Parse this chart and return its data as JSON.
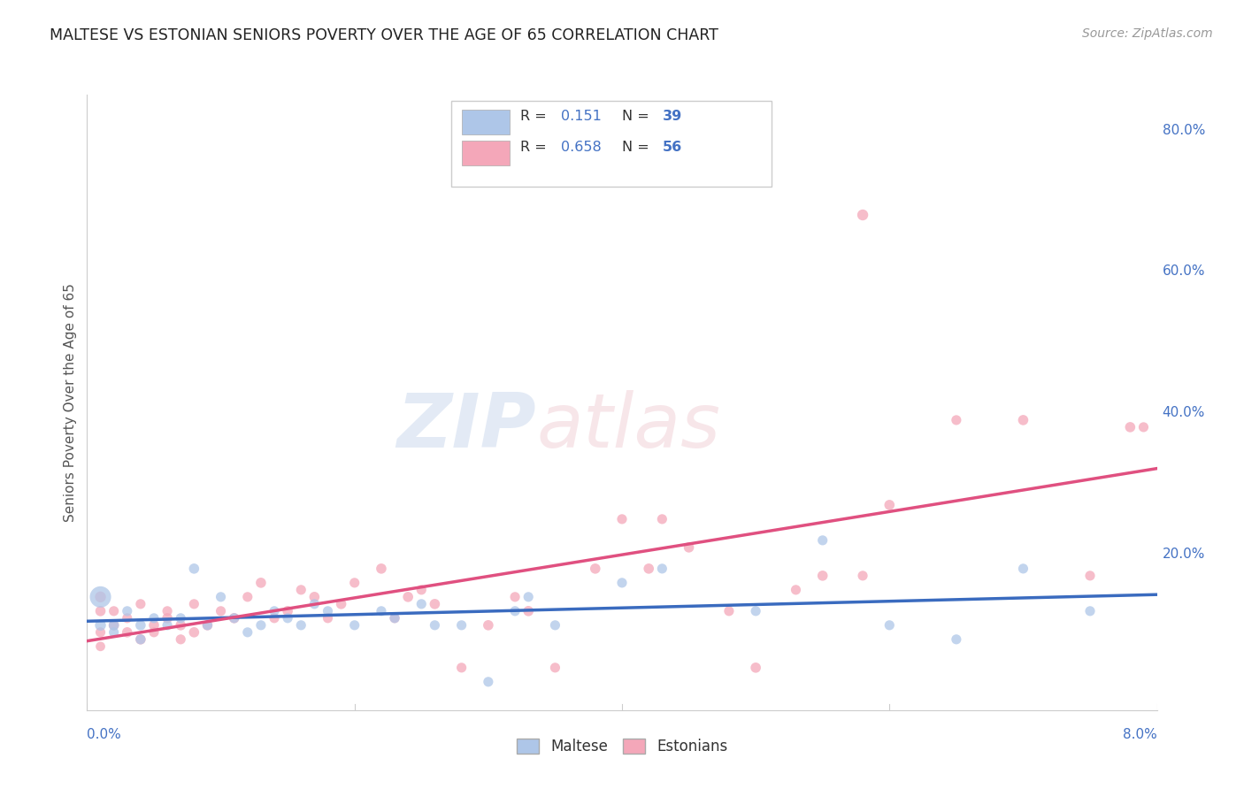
{
  "title": "MALTESE VS ESTONIAN SENIORS POVERTY OVER THE AGE OF 65 CORRELATION CHART",
  "source": "Source: ZipAtlas.com",
  "ylabel": "Seniors Poverty Over the Age of 65",
  "xmin": 0.0,
  "xmax": 0.08,
  "ymin": -0.02,
  "ymax": 0.85,
  "yticks": [
    0.0,
    0.2,
    0.4,
    0.6,
    0.8
  ],
  "ytick_labels": [
    "",
    "20.0%",
    "40.0%",
    "60.0%",
    "80.0%"
  ],
  "background_color": "#ffffff",
  "grid_color": "#cccccc",
  "maltese_color": "#aec6e8",
  "estonian_color": "#f4a7b9",
  "maltese_line_color": "#3a6bbf",
  "estonian_line_color": "#e05080",
  "legend_R_maltese": "R =  0.151",
  "legend_N_maltese": "N = 39",
  "legend_R_estonian": "R =  0.658",
  "legend_N_estonian": "N = 56",
  "maltese_x": [
    0.001,
    0.001,
    0.002,
    0.003,
    0.004,
    0.005,
    0.006,
    0.007,
    0.008,
    0.009,
    0.01,
    0.011,
    0.012,
    0.013,
    0.014,
    0.015,
    0.016,
    0.017,
    0.018,
    0.02,
    0.022,
    0.023,
    0.025,
    0.026,
    0.028,
    0.03,
    0.032,
    0.033,
    0.035,
    0.04,
    0.043,
    0.05,
    0.055,
    0.06,
    0.065,
    0.07,
    0.075,
    0.002,
    0.004
  ],
  "maltese_y": [
    0.14,
    0.1,
    0.1,
    0.12,
    0.1,
    0.11,
    0.1,
    0.11,
    0.18,
    0.1,
    0.14,
    0.11,
    0.09,
    0.1,
    0.12,
    0.11,
    0.1,
    0.13,
    0.12,
    0.1,
    0.12,
    0.11,
    0.13,
    0.1,
    0.1,
    0.02,
    0.12,
    0.14,
    0.1,
    0.16,
    0.18,
    0.12,
    0.22,
    0.1,
    0.08,
    0.18,
    0.12,
    0.09,
    0.08
  ],
  "maltese_size": [
    300,
    80,
    70,
    65,
    70,
    65,
    65,
    65,
    70,
    65,
    65,
    65,
    65,
    65,
    65,
    65,
    65,
    65,
    65,
    65,
    65,
    65,
    65,
    65,
    65,
    65,
    65,
    65,
    65,
    65,
    65,
    65,
    65,
    65,
    65,
    65,
    65,
    65,
    65
  ],
  "estonian_x": [
    0.001,
    0.001,
    0.001,
    0.001,
    0.002,
    0.002,
    0.003,
    0.003,
    0.004,
    0.004,
    0.005,
    0.005,
    0.006,
    0.006,
    0.007,
    0.007,
    0.008,
    0.008,
    0.009,
    0.01,
    0.011,
    0.012,
    0.013,
    0.014,
    0.015,
    0.016,
    0.017,
    0.018,
    0.019,
    0.02,
    0.022,
    0.023,
    0.024,
    0.025,
    0.026,
    0.028,
    0.03,
    0.032,
    0.033,
    0.035,
    0.038,
    0.04,
    0.042,
    0.043,
    0.045,
    0.048,
    0.05,
    0.053,
    0.055,
    0.058,
    0.06,
    0.065,
    0.07,
    0.075,
    0.078,
    0.079
  ],
  "estonian_y": [
    0.14,
    0.12,
    0.09,
    0.07,
    0.1,
    0.12,
    0.09,
    0.11,
    0.08,
    0.13,
    0.1,
    0.09,
    0.11,
    0.12,
    0.1,
    0.08,
    0.09,
    0.13,
    0.1,
    0.12,
    0.11,
    0.14,
    0.16,
    0.11,
    0.12,
    0.15,
    0.14,
    0.11,
    0.13,
    0.16,
    0.18,
    0.11,
    0.14,
    0.15,
    0.13,
    0.04,
    0.1,
    0.14,
    0.12,
    0.04,
    0.18,
    0.25,
    0.18,
    0.25,
    0.21,
    0.12,
    0.04,
    0.15,
    0.17,
    0.17,
    0.27,
    0.39,
    0.39,
    0.17,
    0.38,
    0.38
  ],
  "estonian_size": [
    80,
    70,
    65,
    60,
    70,
    65,
    70,
    65,
    70,
    65,
    70,
    65,
    70,
    65,
    70,
    65,
    70,
    65,
    70,
    65,
    70,
    65,
    70,
    65,
    70,
    65,
    70,
    65,
    70,
    65,
    70,
    65,
    70,
    65,
    70,
    65,
    70,
    65,
    70,
    65,
    70,
    65,
    70,
    65,
    70,
    65,
    70,
    65,
    70,
    65,
    70,
    65,
    70,
    65,
    70,
    65
  ],
  "estonian_outlier_x": [
    0.058
  ],
  "estonian_outlier_y": [
    0.68
  ],
  "estonian_outlier_size": [
    80
  ]
}
